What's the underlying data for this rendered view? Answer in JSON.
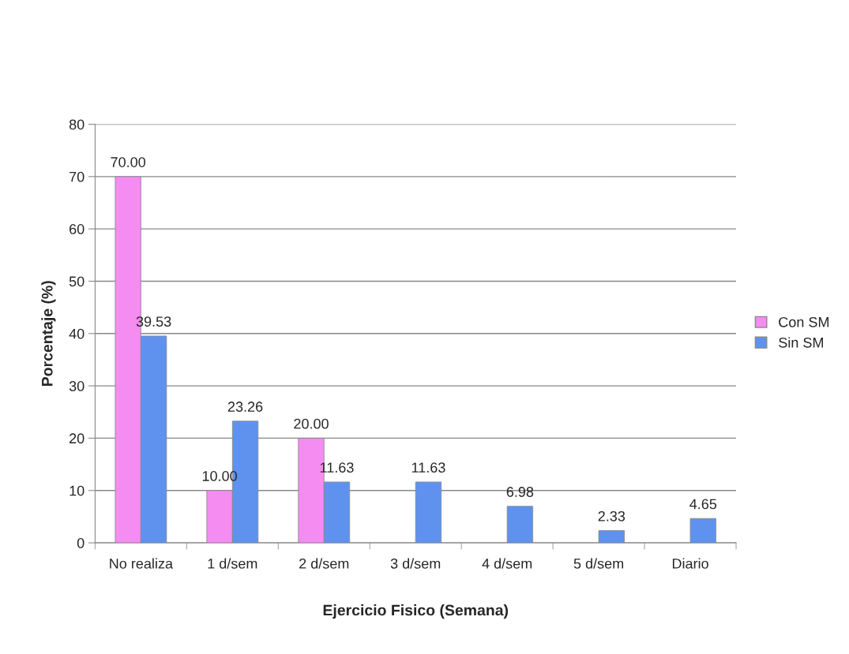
{
  "chart_data": {
    "type": "bar",
    "xlabel": "Ejercicio Fisico (Semana)",
    "ylabel": "Porcentaje (%)",
    "categories": [
      "No realiza",
      "1 d/sem",
      "2 d/sem",
      "3 d/sem",
      "4 d/sem",
      "5 d/sem",
      "Diario"
    ],
    "series": [
      {
        "name": "Con SM",
        "color": "#f48cf2",
        "values": [
          70.0,
          10.0,
          20.0,
          null,
          null,
          null,
          null
        ],
        "value_labels": [
          "70.00",
          "10.00",
          "20.00",
          null,
          null,
          null,
          null
        ]
      },
      {
        "name": "Sin SM",
        "color": "#5e92ee",
        "values": [
          39.53,
          23.26,
          11.63,
          11.63,
          6.98,
          2.33,
          4.65
        ],
        "value_labels": [
          "39.53",
          "23.26",
          "11.63",
          "11.63",
          "6.98",
          "2.33",
          "4.65"
        ]
      }
    ],
    "ylim": [
      0,
      80
    ],
    "yticks": [
      0,
      10,
      20,
      30,
      40,
      50,
      60,
      70,
      80
    ],
    "grid": "y",
    "legend": "right"
  }
}
